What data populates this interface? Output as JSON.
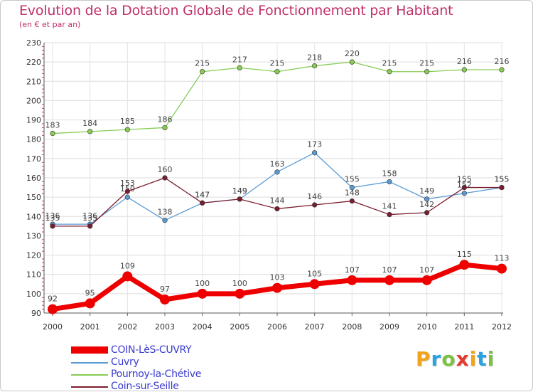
{
  "chart_data": {
    "type": "line",
    "title": "Evolution de la Dotation Globale de Fonctionnement par Habitant",
    "subtitle": "(en € et par an)",
    "categories": [
      "2000",
      "2001",
      "2002",
      "2003",
      "2004",
      "2005",
      "2006",
      "2007",
      "2008",
      "2009",
      "2010",
      "2011",
      "2012"
    ],
    "ylim": [
      90,
      230
    ],
    "yticks": [
      90,
      100,
      110,
      120,
      130,
      140,
      150,
      160,
      170,
      180,
      190,
      200,
      210,
      220,
      230
    ],
    "grid": true,
    "series": [
      {
        "name": "Pournoy-la-Chétive",
        "color": "#88cc55",
        "values": [
          183,
          184,
          185,
          186,
          215,
          217,
          215,
          218,
          220,
          215,
          215,
          216,
          216
        ]
      },
      {
        "name": "Cuvry",
        "color": "#5b9bd5",
        "values": [
          136,
          136,
          150,
          138,
          147,
          149,
          163,
          173,
          155,
          158,
          149,
          152,
          155
        ]
      },
      {
        "name": "Coin-sur-Seille",
        "color": "#7a1e2e",
        "values": [
          135,
          135,
          153,
          160,
          147,
          149,
          144,
          146,
          148,
          141,
          142,
          155,
          155
        ]
      },
      {
        "name": "COIN-LèS-CUVRY",
        "color": "#ee0000",
        "values": [
          92,
          95,
          109,
          97,
          100,
          100,
          103,
          105,
          107,
          107,
          107,
          115,
          113
        ]
      }
    ]
  },
  "legend": {
    "items": [
      {
        "label": "COIN-LèS-CUVRY",
        "color": "#ee0000"
      },
      {
        "label": "Cuvry",
        "color": "#5b9bd5"
      },
      {
        "label": "Pournoy-la-Chétive",
        "color": "#88cc55"
      },
      {
        "label": "Coin-sur-Seille",
        "color": "#7a1e2e"
      }
    ]
  },
  "brand": {
    "letters": [
      {
        "ch": "P",
        "color": "#f2a31b"
      },
      {
        "ch": "r",
        "color": "#29a3e0"
      },
      {
        "ch": "o",
        "color": "#7cc242"
      },
      {
        "ch": "x",
        "color": "#e53a2e"
      },
      {
        "ch": "i",
        "color": "#f2a31b"
      },
      {
        "ch": "t",
        "color": "#29a3e0"
      },
      {
        "ch": "i",
        "color": "#7cc242"
      }
    ]
  }
}
